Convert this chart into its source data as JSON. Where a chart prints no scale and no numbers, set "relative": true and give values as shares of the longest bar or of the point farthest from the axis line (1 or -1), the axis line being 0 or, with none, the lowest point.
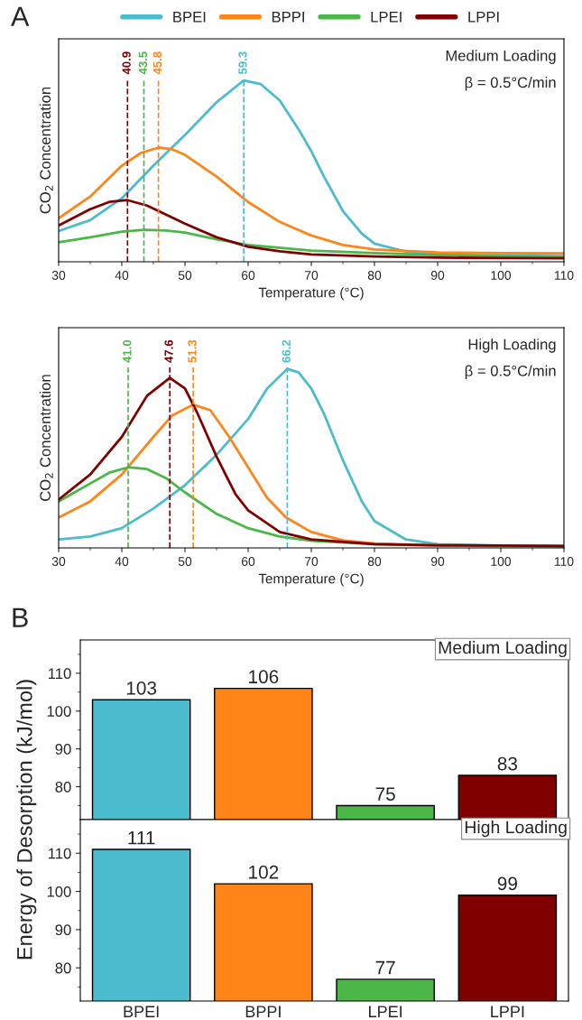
{
  "chart_data": [
    {
      "type": "line",
      "title": "A",
      "xlabel": "Temperature (°C)",
      "ylabel": "CO$_{2}$ Concentration",
      "relative": true,
      "xlim": [
        30,
        110
      ],
      "xticks": [
        30,
        40,
        50,
        60,
        70,
        80,
        90,
        100,
        110
      ],
      "legend": "top",
      "tick_labels": "x",
      "annotations": [
        "Medium Loading",
        "β = 0.5°C/min"
      ],
      "series": [
        {
          "name": "BPEI",
          "color": "#4bbcce",
          "x": [
            30,
            35,
            40,
            45,
            50,
            55,
            59.3,
            62,
            65,
            68,
            70,
            72,
            75,
            78,
            80,
            85,
            90,
            100,
            110
          ],
          "values": [
            0.17,
            0.23,
            0.35,
            0.53,
            0.7,
            0.88,
            1.0,
            0.98,
            0.89,
            0.73,
            0.61,
            0.47,
            0.28,
            0.155,
            0.1,
            0.056,
            0.04,
            0.035,
            0.031
          ]
        },
        {
          "name": "BPPI",
          "color": "#ff8518",
          "x": [
            30,
            35,
            40,
            43,
            45.8,
            48,
            50,
            55,
            60,
            65,
            70,
            75,
            80,
            90,
            100,
            110
          ],
          "values": [
            0.24,
            0.36,
            0.53,
            0.6,
            0.63,
            0.62,
            0.59,
            0.47,
            0.33,
            0.22,
            0.145,
            0.093,
            0.068,
            0.052,
            0.048,
            0.046
          ]
        },
        {
          "name": "LPEI",
          "color": "#4cb648",
          "x": [
            30,
            35,
            40,
            43.5,
            47,
            50,
            55,
            60,
            70,
            80,
            90,
            100,
            110
          ],
          "values": [
            0.108,
            0.135,
            0.166,
            0.176,
            0.172,
            0.161,
            0.124,
            0.093,
            0.062,
            0.048,
            0.037,
            0.031,
            0.027
          ]
        },
        {
          "name": "LPPI",
          "color": "#800000",
          "x": [
            30,
            35,
            38,
            40.9,
            44,
            47,
            50,
            55,
            60,
            65,
            70,
            80,
            90,
            100,
            110
          ],
          "values": [
            0.2,
            0.29,
            0.33,
            0.34,
            0.31,
            0.26,
            0.21,
            0.135,
            0.083,
            0.058,
            0.041,
            0.029,
            0.023,
            0.021,
            0.019
          ]
        }
      ],
      "ref_lines": [
        {
          "axis": "x",
          "value": 40.9,
          "label": "40.9",
          "color": "#800000",
          "line_style": "dashed"
        },
        {
          "axis": "x",
          "value": 43.5,
          "label": "43.5",
          "color": "#4cb648",
          "line_style": "dashed"
        },
        {
          "axis": "x",
          "value": 45.8,
          "label": "45.8",
          "color": "#ff8518",
          "line_style": "dashed"
        },
        {
          "axis": "x",
          "value": 59.3,
          "label": "59.3",
          "color": "#4bbcce",
          "line_style": "dashed"
        }
      ]
    },
    {
      "type": "line",
      "xlabel": "Temperature (°C)",
      "ylabel": "CO$_{2}$ Concentration",
      "relative": true,
      "xlim": [
        30,
        110
      ],
      "xticks": [
        30,
        40,
        50,
        60,
        70,
        80,
        90,
        100,
        110
      ],
      "tick_labels": "x",
      "annotations": [
        "High Loading",
        "β = 0.5°C/min"
      ],
      "series": [
        {
          "color": "#4bbcce",
          "x": [
            30,
            35,
            40,
            45,
            50,
            55,
            60,
            63,
            66.2,
            68,
            70,
            72,
            75,
            78,
            80,
            85,
            90,
            100,
            110
          ],
          "values": [
            0.047,
            0.064,
            0.11,
            0.22,
            0.35,
            0.52,
            0.72,
            0.89,
            1.0,
            0.98,
            0.89,
            0.75,
            0.49,
            0.26,
            0.15,
            0.047,
            0.021,
            0.013,
            0.011
          ]
        },
        {
          "color": "#ff8518",
          "x": [
            30,
            35,
            40,
            45,
            48,
            51.3,
            54,
            57,
            60,
            63,
            66,
            70,
            75,
            80,
            90,
            110
          ],
          "values": [
            0.17,
            0.26,
            0.41,
            0.62,
            0.74,
            0.8,
            0.77,
            0.62,
            0.45,
            0.28,
            0.17,
            0.089,
            0.042,
            0.025,
            0.015,
            0.011
          ]
        },
        {
          "color": "#4cb648",
          "x": [
            30,
            35,
            38,
            41,
            44,
            47,
            50,
            55,
            60,
            65,
            70,
            80,
            90,
            110
          ],
          "values": [
            0.26,
            0.36,
            0.42,
            0.45,
            0.44,
            0.39,
            0.31,
            0.19,
            0.11,
            0.064,
            0.04,
            0.021,
            0.013,
            0.008
          ]
        },
        {
          "color": "#800000",
          "x": [
            30,
            35,
            40,
            44,
            47.6,
            50,
            52,
            55,
            58,
            60,
            65,
            70,
            80,
            90,
            110
          ],
          "values": [
            0.27,
            0.41,
            0.62,
            0.85,
            0.95,
            0.89,
            0.75,
            0.51,
            0.3,
            0.21,
            0.089,
            0.047,
            0.021,
            0.015,
            0.011
          ]
        }
      ],
      "ref_lines": [
        {
          "axis": "x",
          "value": 41.0,
          "label": "41.0",
          "color": "#4cb648",
          "line_style": "dashed"
        },
        {
          "axis": "x",
          "value": 47.6,
          "label": "47.6",
          "color": "#800000",
          "line_style": "dashed"
        },
        {
          "axis": "x",
          "value": 51.3,
          "label": "51.3",
          "color": "#ff8518",
          "line_style": "dashed"
        },
        {
          "axis": "x",
          "value": 66.2,
          "label": "66.2",
          "color": "#4bbcce",
          "line_style": "dashed"
        }
      ]
    },
    {
      "type": "bar",
      "title": "B",
      "ylabel": "Energy of Desorption (kJ/mol)",
      "categories": [
        null,
        null,
        null,
        null
      ],
      "values": [
        103,
        106,
        75,
        83
      ],
      "colors": [
        "#4bbcce",
        "#ff8518",
        "#4cb648",
        "#800000"
      ],
      "ylim": [
        71.3,
        118.8
      ],
      "yticks": [
        80,
        90,
        100,
        110
      ],
      "data_labels": true,
      "tick_labels": "y",
      "annotations": [
        "Medium Loading"
      ]
    },
    {
      "type": "bar",
      "categories": [
        "BPEI",
        "BPPI",
        "LPEI",
        "LPPI"
      ],
      "values": [
        111,
        102,
        77,
        99
      ],
      "colors": [
        "#4bbcce",
        "#ff8518",
        "#4cb648",
        "#800000"
      ],
      "ylim": [
        71.3,
        118.8
      ],
      "yticks": [
        80,
        90,
        100,
        110
      ],
      "data_labels": true,
      "annotations": [
        "High Loading"
      ]
    }
  ]
}
